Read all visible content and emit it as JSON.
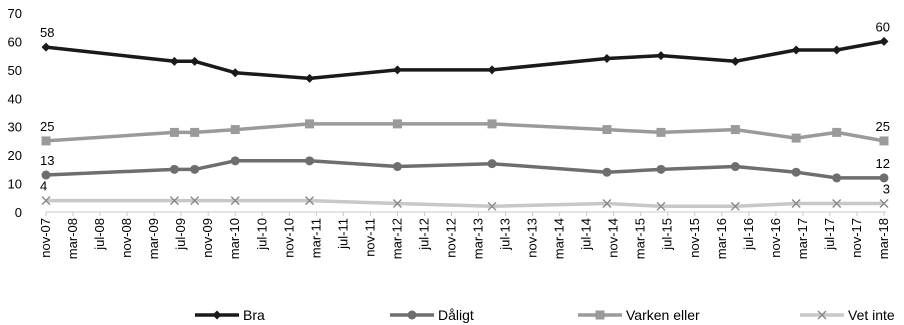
{
  "chart_data": {
    "type": "line",
    "title": "",
    "xlabel": "",
    "ylabel": "",
    "ylim": [
      0,
      70
    ],
    "yticks": [
      0,
      10,
      20,
      30,
      40,
      50,
      60,
      70
    ],
    "grid": false,
    "legend_position": "bottom",
    "x_tick_labels": [
      "nov-07",
      "mar-08",
      "jul-08",
      "nov-08",
      "mar-09",
      "jul-09",
      "nov-09",
      "mar-10",
      "jul-10",
      "nov-10",
      "mar-11",
      "jul-11",
      "nov-11",
      "mar-12",
      "jul-12",
      "nov-12",
      "mar-13",
      "jul-13",
      "nov-13",
      "mar-14",
      "jul-14",
      "nov-14",
      "mar-15",
      "jul-15",
      "nov-15",
      "mar-16",
      "jul-16",
      "nov-16",
      "mar-17",
      "jul-17",
      "nov-17",
      "mar-18"
    ],
    "x_points": [
      "nov-07",
      "jun-09",
      "sep-09",
      "mar-10",
      "feb-11",
      "mar-12",
      "may-13",
      "oct-14",
      "jun-15",
      "may-16",
      "feb-17",
      "aug-17",
      "mar-18"
    ],
    "x_positions": [
      0,
      19,
      22,
      28,
      39,
      52,
      66,
      83,
      91,
      102,
      111,
      117,
      124
    ],
    "series": [
      {
        "name": "Bra",
        "color": "#1a1a1a",
        "marker": "diamond",
        "values": [
          58,
          53,
          53,
          49,
          47,
          50,
          50,
          54,
          55,
          53,
          57,
          57,
          60
        ]
      },
      {
        "name": "Dåligt",
        "color": "#6e6e6e",
        "marker": "circle",
        "values": [
          13,
          15,
          15,
          18,
          18,
          16,
          17,
          14,
          15,
          16,
          14,
          12,
          12
        ]
      },
      {
        "name": "Varken eller",
        "color": "#9a9a9a",
        "marker": "square",
        "values": [
          25,
          28,
          28,
          29,
          31,
          31,
          31,
          29,
          28,
          29,
          26,
          28,
          25
        ]
      },
      {
        "name": "Vet inte",
        "color": "#c8c8c8",
        "marker": "x",
        "values": [
          4,
          4,
          4,
          4,
          4,
          3,
          2,
          3,
          2,
          2,
          3,
          3,
          3
        ]
      }
    ],
    "data_labels": [
      {
        "series": 0,
        "point": 0,
        "text": "58"
      },
      {
        "series": 0,
        "point": 12,
        "text": "60"
      },
      {
        "series": 2,
        "point": 0,
        "text": "25"
      },
      {
        "series": 2,
        "point": 12,
        "text": "25"
      },
      {
        "series": 1,
        "point": 0,
        "text": "13"
      },
      {
        "series": 1,
        "point": 12,
        "text": "12"
      },
      {
        "series": 3,
        "point": 0,
        "text": "4"
      },
      {
        "series": 3,
        "point": 12,
        "text": "3"
      }
    ]
  }
}
